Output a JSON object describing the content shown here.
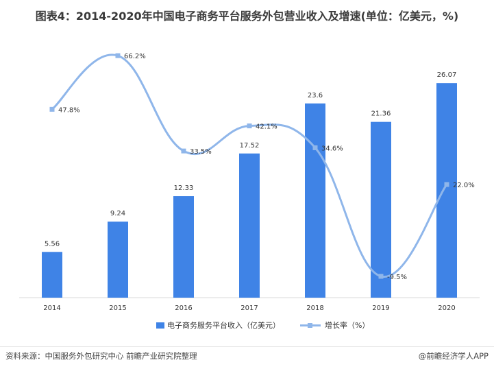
{
  "title": "图表4：2014-2020年中国电子商务平台服务外包营业收入及增速(单位：亿美元，%)",
  "chart_data": {
    "type": "bar",
    "categories": [
      "2014",
      "2015",
      "2016",
      "2017",
      "2018",
      "2019",
      "2020"
    ],
    "series": [
      {
        "name": "电子商务服务平台收入（亿美元）",
        "type": "bar",
        "axis": "left",
        "values": [
          5.56,
          9.24,
          12.33,
          17.52,
          23.6,
          21.36,
          26.07
        ],
        "labels": [
          "5.56",
          "9.24",
          "12.33",
          "17.52",
          "23.6",
          "21.36",
          "26.07"
        ],
        "color": "#3f83e6"
      },
      {
        "name": "增长率（%）",
        "type": "line",
        "axis": "right",
        "values": [
          47.8,
          66.2,
          33.5,
          42.1,
          34.6,
          -9.5,
          22.0
        ],
        "labels": [
          "47.8%",
          "66.2%",
          "33.5%",
          "42.1%",
          "34.6%",
          "-9.5%",
          "22.0%"
        ],
        "color": "#8fb6ea",
        "smooth": true
      }
    ],
    "bar_axis_range": [
      0,
      30
    ],
    "line_axis_range": [
      -30,
      90
    ],
    "grid": false,
    "legend_position": "bottom"
  },
  "footer": {
    "source": "资料来源：中国服务外包研究中心 前瞻产业研究院整理",
    "brand": "@前瞻经济学人APP"
  }
}
